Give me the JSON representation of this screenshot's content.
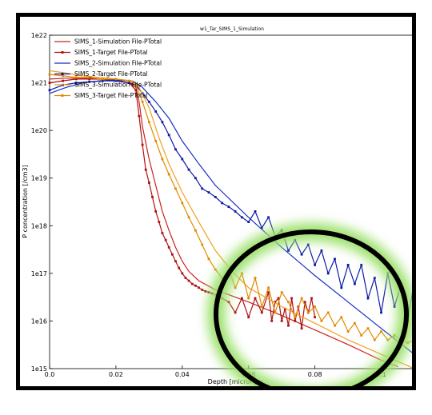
{
  "chart_data": {
    "type": "line",
    "title": "w1_Tar_SIMS_1_Simulation",
    "xlabel": "Depth [micron]",
    "ylabel": "P concentration [/cm3]",
    "xlim": [
      0,
      0.11
    ],
    "ylim": [
      1000000000000000.0,
      1e+22
    ],
    "y_scale": "log",
    "x_ticks": [
      "0.0",
      "0.02",
      "0.04",
      "0.06",
      "0.08",
      "0.1"
    ],
    "y_ticks": [
      "1e15",
      "1e16",
      "1e17",
      "1e18",
      "1e19",
      "1e20",
      "1e21",
      "1e22"
    ],
    "grid": false,
    "legend_position": "top-left",
    "series": [
      {
        "name": "SIMS_1-Simulation File-PTotal",
        "color": "#cc2020",
        "marker": false,
        "x": [
          0,
          0.005,
          0.01,
          0.015,
          0.02,
          0.024,
          0.026,
          0.027,
          0.028,
          0.03,
          0.032,
          0.034,
          0.036,
          0.038,
          0.04,
          0.042,
          0.045,
          0.05,
          0.06,
          0.07,
          0.08,
          0.09,
          0.1,
          0.105
        ],
        "y": [
          1.2e+21,
          1.25e+21,
          1.25e+21,
          1.2e+21,
          1.15e+21,
          1e+21,
          8e+20,
          4e+20,
          1.2e+20,
          2.5e+19,
          7e+18,
          2e+18,
          8e+17,
          3.5e+17,
          1.8e+17,
          1.1e+17,
          7e+16,
          4.5e+16,
          2.5e+16,
          1.3e+16,
          6500000000000000.0,
          3200000000000000.0,
          1500000000000000.0,
          1100000000000000.0
        ]
      },
      {
        "name": "SIMS_1-Target File-PTotal",
        "color": "#b01010",
        "marker": true,
        "x": [
          0.0,
          0.004,
          0.008,
          0.012,
          0.016,
          0.02,
          0.024,
          0.026,
          0.027,
          0.028,
          0.029,
          0.03,
          0.031,
          0.032,
          0.033,
          0.034,
          0.035,
          0.036,
          0.037,
          0.038,
          0.039,
          0.04,
          0.041,
          0.042,
          0.043,
          0.044,
          0.045,
          0.046,
          0.047,
          0.048,
          0.049,
          0.05,
          0.052,
          0.054,
          0.056,
          0.058,
          0.06,
          0.062,
          0.064,
          0.066,
          0.067,
          0.068,
          0.069,
          0.07,
          0.071,
          0.072,
          0.073,
          0.074,
          0.075,
          0.076,
          0.077,
          0.078,
          0.079,
          0.08
        ],
        "y": [
          1e+21,
          1.1e+21,
          1.2e+21,
          1.2e+21,
          1.2e+21,
          1.1e+21,
          1e+21,
          7e+20,
          2e+20,
          5e+19,
          1.5e+19,
          8e+18,
          4e+18,
          2e+18,
          1.2e+18,
          7e+17,
          5e+17,
          3.5e+17,
          2.5e+17,
          1.8e+17,
          1.3e+17,
          1e+17,
          8e+16,
          7e+16,
          6e+16,
          5.5e+16,
          5e+16,
          4.5e+16,
          4.2e+16,
          4e+16,
          3.8e+16,
          3.5e+16,
          3e+16,
          2.5e+16,
          1.5e+16,
          3e+16,
          1.2e+16,
          3e+16,
          1.5e+16,
          4e+16,
          1e+16,
          2.5e+16,
          3e+16,
          1e+16,
          1.8e+16,
          8000000000000000.0,
          3e+16,
          1e+16,
          2e+16,
          7000000000000000.0,
          2.5e+16,
          1.5e+16,
          3e+16,
          1.2e+16
        ]
      },
      {
        "name": "SIMS_2-Simulation File-PTotal",
        "color": "#1a2ec4",
        "marker": false,
        "x": [
          0,
          0.005,
          0.01,
          0.015,
          0.02,
          0.025,
          0.028,
          0.032,
          0.036,
          0.04,
          0.045,
          0.05,
          0.06,
          0.07,
          0.08,
          0.09,
          0.1,
          0.11
        ],
        "y": [
          6e+20,
          8e+20,
          1e+21,
          1.1e+21,
          1.15e+21,
          1.1e+21,
          8e+20,
          4e+20,
          1.8e+20,
          6e+19,
          2e+19,
          7e+18,
          1.5e+18,
          3.5e+17,
          9e+16,
          2.5e+16,
          7000000000000000.0,
          2000000000000000.0
        ]
      },
      {
        "name": "SIMS_2-Target File-PTotal",
        "color": "#0d1aa8",
        "marker": true,
        "x": [
          0.0,
          0.004,
          0.008,
          0.012,
          0.016,
          0.02,
          0.024,
          0.026,
          0.028,
          0.03,
          0.032,
          0.034,
          0.036,
          0.038,
          0.04,
          0.042,
          0.044,
          0.046,
          0.048,
          0.05,
          0.052,
          0.054,
          0.056,
          0.058,
          0.06,
          0.062,
          0.064,
          0.066,
          0.068,
          0.07,
          0.072,
          0.074,
          0.076,
          0.078,
          0.08,
          0.082,
          0.084,
          0.086,
          0.088,
          0.09,
          0.092,
          0.094,
          0.096,
          0.098,
          0.1,
          0.102,
          0.104,
          0.106,
          0.108,
          0.11
        ],
        "y": [
          7e+20,
          9e+20,
          1e+21,
          1.05e+21,
          1.1e+21,
          1.1e+21,
          1e+21,
          9e+20,
          6e+20,
          4e+20,
          2.5e+20,
          1.5e+20,
          8e+19,
          4e+19,
          2.5e+19,
          1.5e+19,
          1e+19,
          6e+18,
          5e+18,
          4e+18,
          3e+18,
          2.5e+18,
          2e+18,
          1.5e+18,
          1.2e+18,
          2e+18,
          9e+17,
          1.5e+18,
          6e+17,
          8e+17,
          3e+17,
          5e+17,
          2.5e+17,
          4e+17,
          1.5e+17,
          3e+17,
          1e+17,
          2e+17,
          5e+16,
          1.5e+17,
          6e+16,
          1.5e+17,
          3e+16,
          8e+16,
          1.5e+16,
          1e+17,
          2e+16,
          6e+16,
          1e+16,
          7e+16
        ]
      },
      {
        "name": "SIMS_3-Simulation File-PTotal",
        "color": "#f0a020",
        "marker": false,
        "x": [
          0,
          0.005,
          0.01,
          0.015,
          0.02,
          0.025,
          0.027,
          0.03,
          0.033,
          0.036,
          0.04,
          0.045,
          0.05,
          0.055,
          0.06,
          0.07,
          0.08,
          0.09,
          0.1,
          0.11
        ],
        "y": [
          1.8e+21,
          1.6e+21,
          1.4e+21,
          1.3e+21,
          1.2e+21,
          1.1e+21,
          8e+20,
          3e+20,
          7e+19,
          2e+19,
          5e+18,
          1.2e+18,
          3e+17,
          1.1e+17,
          5e+16,
          2e+16,
          9000000000000000.0,
          4000000000000000.0,
          2000000000000000.0,
          1000000000000000.0
        ]
      },
      {
        "name": "SIMS_3-Target File-PTotal",
        "color": "#e08a00",
        "marker": true,
        "x": [
          0.0,
          0.004,
          0.008,
          0.012,
          0.016,
          0.02,
          0.024,
          0.026,
          0.028,
          0.03,
          0.032,
          0.034,
          0.036,
          0.038,
          0.04,
          0.042,
          0.044,
          0.046,
          0.048,
          0.05,
          0.052,
          0.054,
          0.056,
          0.058,
          0.06,
          0.062,
          0.064,
          0.066,
          0.068,
          0.07,
          0.072,
          0.074,
          0.076,
          0.078,
          0.08,
          0.082,
          0.084,
          0.086,
          0.088,
          0.09,
          0.092,
          0.094,
          0.096,
          0.098,
          0.1,
          0.102,
          0.104,
          0.106,
          0.108,
          0.11
        ],
        "y": [
          1.5e+21,
          1.4e+21,
          1.3e+21,
          1.3e+21,
          1.2e+21,
          1.2e+21,
          1.1e+21,
          9e+20,
          4e+20,
          1.5e+20,
          6e+19,
          2.5e+19,
          1.2e+19,
          6e+18,
          3e+18,
          1.5e+18,
          8e+17,
          4e+17,
          2e+17,
          1.2e+17,
          8e+16,
          1.2e+17,
          5e+16,
          1e+17,
          3e+16,
          8e+16,
          2e+16,
          5e+16,
          1.5e+16,
          4e+16,
          2.5e+16,
          1.2e+16,
          3e+16,
          1.5e+16,
          2e+16,
          1e+16,
          1.5e+16,
          8000000000000000.0,
          1.2e+16,
          6000000000000000.0,
          9000000000000000.0,
          5000000000000000.0,
          7000000000000000.0,
          4000000000000000.0,
          6000000000000000.0,
          4000000000000000.0,
          5000000000000000.0,
          4000000000000000.0,
          3500000000000000.0,
          4000000000000000.0
        ]
      }
    ]
  },
  "annotation": {
    "circle_color": "#000000",
    "glow_color": "#9be06a"
  }
}
